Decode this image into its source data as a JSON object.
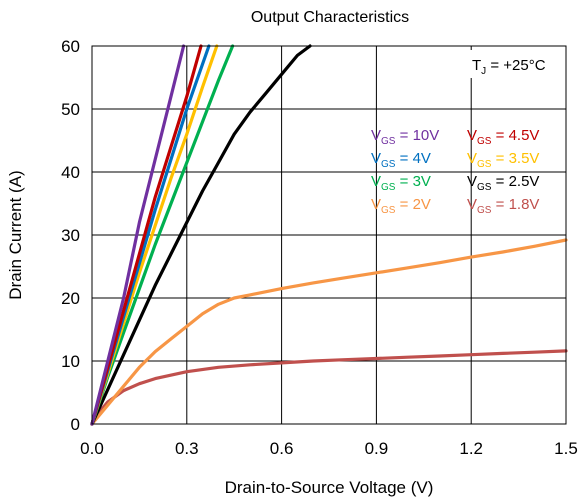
{
  "chart_data": {
    "type": "line",
    "title": "Output Characteristics",
    "xlabel": "Drain-to-Source Voltage (V)",
    "ylabel": "Drain Current (A)",
    "xlim": [
      0,
      1.5
    ],
    "ylim": [
      0,
      60
    ],
    "xticks": [
      "0.0",
      "0.3",
      "0.6",
      "0.9",
      "1.2",
      "1.5"
    ],
    "yticks": [
      "0",
      "10",
      "20",
      "30",
      "40",
      "50",
      "60"
    ],
    "grid": true,
    "annotation": {
      "main": "T",
      "sub": "J",
      "rest": " = +25°C"
    },
    "legend_placement": "top-right",
    "series": [
      {
        "name": "10V",
        "color": "#7030a0",
        "x": [
          0,
          0.05,
          0.1,
          0.15,
          0.2,
          0.25,
          0.29
        ],
        "y": [
          0,
          10,
          20,
          32,
          42,
          52,
          60
        ]
      },
      {
        "name": "4.5V",
        "color": "#c00000",
        "x": [
          0,
          0.05,
          0.1,
          0.15,
          0.2,
          0.25,
          0.3,
          0.345
        ],
        "y": [
          0,
          9,
          18,
          27,
          36,
          44,
          52,
          60
        ]
      },
      {
        "name": "4V",
        "color": "#0070c0",
        "x": [
          0,
          0.05,
          0.1,
          0.15,
          0.2,
          0.25,
          0.3,
          0.37
        ],
        "y": [
          0,
          8.5,
          17,
          25.5,
          34,
          42,
          50,
          60
        ]
      },
      {
        "name": "3.5V",
        "color": "#ffc000",
        "x": [
          0,
          0.05,
          0.1,
          0.15,
          0.2,
          0.25,
          0.3,
          0.35,
          0.395
        ],
        "y": [
          0,
          8,
          16,
          24,
          31.5,
          39,
          46,
          53.5,
          60
        ]
      },
      {
        "name": "3V",
        "color": "#00b050",
        "x": [
          0,
          0.05,
          0.1,
          0.15,
          0.2,
          0.25,
          0.3,
          0.35,
          0.4,
          0.445
        ],
        "y": [
          0,
          7.5,
          14.5,
          21.5,
          28.5,
          35,
          41.5,
          48,
          54.5,
          60
        ]
      },
      {
        "name": "2.5V",
        "color": "#000000",
        "x": [
          0,
          0.05,
          0.1,
          0.15,
          0.2,
          0.25,
          0.3,
          0.35,
          0.4,
          0.45,
          0.5,
          0.55,
          0.6,
          0.65,
          0.69
        ],
        "y": [
          0,
          5.5,
          11,
          16.5,
          22,
          27,
          32,
          37,
          41.5,
          46,
          49.5,
          52.5,
          55.5,
          58.5,
          60
        ]
      },
      {
        "name": "2V",
        "color": "#f79646",
        "x": [
          0,
          0.05,
          0.1,
          0.15,
          0.2,
          0.25,
          0.3,
          0.35,
          0.4,
          0.45,
          0.5,
          0.6,
          0.7,
          0.8,
          0.9,
          1.0,
          1.1,
          1.2,
          1.3,
          1.4,
          1.5
        ],
        "y": [
          0,
          3,
          6,
          9,
          11.5,
          13.5,
          15.5,
          17.5,
          19,
          20,
          20.5,
          21.5,
          22.4,
          23.2,
          24,
          24.8,
          25.6,
          26.5,
          27.3,
          28.2,
          29.2
        ]
      },
      {
        "name": "1.8V",
        "color": "#c0504d",
        "x": [
          0,
          0.025,
          0.05,
          0.1,
          0.15,
          0.2,
          0.3,
          0.4,
          0.5,
          0.6,
          0.7,
          0.8,
          0.9,
          1.0,
          1.1,
          1.2,
          1.3,
          1.4,
          1.5
        ],
        "y": [
          0,
          2,
          3.5,
          5.3,
          6.4,
          7.2,
          8.3,
          9,
          9.4,
          9.7,
          10,
          10.2,
          10.4,
          10.6,
          10.8,
          11,
          11.2,
          11.4,
          11.6
        ]
      }
    ]
  },
  "legend": {
    "prefix": "V",
    "sub": "GS",
    "eq": " = "
  }
}
